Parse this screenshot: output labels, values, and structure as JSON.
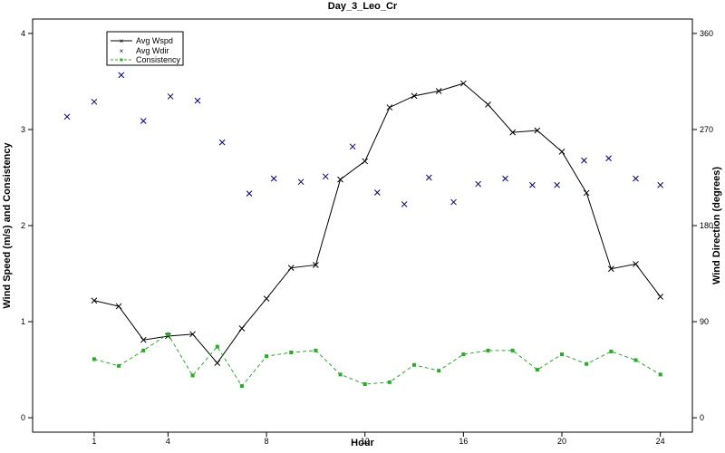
{
  "chart_data": {
    "type": "line",
    "title": "Day_3_Leo_Cr",
    "xlabel": "Hour",
    "ylabel_left": "Wind Speed (m/s) and Consistency",
    "ylabel_right": "Wind Direction (degrees)",
    "xlim": [
      -1.5,
      25.3
    ],
    "ylim_left": [
      -0.15,
      4.15
    ],
    "ylim_right": [
      -13.5,
      373.5
    ],
    "x_ticks": [
      1,
      4,
      8,
      12,
      16,
      20,
      24
    ],
    "x_tick_labels": [
      "1",
      "4",
      "8",
      "12",
      "16",
      "20",
      "24"
    ],
    "y_left_ticks": [
      0,
      1,
      2,
      3,
      4
    ],
    "y_left_tick_labels": [
      "0",
      "1",
      "2",
      "3",
      "4"
    ],
    "y_right_ticks": [
      0,
      90,
      180,
      270,
      360
    ],
    "y_right_tick_labels": [
      "0",
      "90",
      "180",
      "270",
      "360"
    ],
    "grid": false,
    "legend_position": "top-left",
    "series": [
      {
        "name": "Avg Wspd",
        "axis": "left",
        "style": "line-x",
        "color": "#000000",
        "x": [
          1,
          2,
          3,
          4,
          5,
          6,
          7,
          8,
          9,
          10,
          11,
          12,
          13,
          14,
          15,
          16,
          17,
          18,
          19,
          20,
          21,
          22,
          23,
          24
        ],
        "y": [
          1.22,
          1.16,
          0.81,
          0.85,
          0.87,
          0.57,
          0.93,
          1.24,
          1.56,
          1.59,
          2.48,
          2.67,
          3.23,
          3.35,
          3.4,
          3.48,
          3.26,
          2.97,
          2.99,
          2.77,
          2.34,
          1.55,
          1.6,
          1.26
        ]
      },
      {
        "name": "Avg Wdir",
        "axis": "right",
        "style": "markers-x",
        "color": "#00008b",
        "x": [
          -0.1,
          1,
          2.1,
          3,
          4.1,
          5.2,
          6.2,
          7.3,
          8.3,
          9.4,
          10.4,
          11.5,
          12.5,
          13.6,
          14.6,
          15.6,
          16.6,
          17.7,
          18.8,
          19.8,
          20.9,
          21.9,
          23,
          24
        ],
        "y": [
          282,
          296,
          321,
          278,
          301,
          297,
          258,
          210,
          224,
          221,
          226,
          254,
          211,
          200,
          225,
          202,
          219,
          224,
          218,
          218,
          241,
          243,
          224,
          218
        ]
      },
      {
        "name": "Consistency",
        "axis": "left",
        "style": "dashed-dots",
        "color": "#22b022",
        "x": [
          1,
          2,
          3,
          4,
          5,
          6,
          7,
          8,
          9,
          10,
          11,
          12,
          13,
          14,
          15,
          16,
          17,
          18,
          19,
          20,
          21,
          22,
          23,
          24
        ],
        "y": [
          0.61,
          0.54,
          0.7,
          0.87,
          0.44,
          0.74,
          0.33,
          0.64,
          0.68,
          0.7,
          0.45,
          0.35,
          0.37,
          0.55,
          0.49,
          0.66,
          0.7,
          0.7,
          0.5,
          0.66,
          0.56,
          0.69,
          0.6,
          0.45
        ]
      }
    ]
  }
}
